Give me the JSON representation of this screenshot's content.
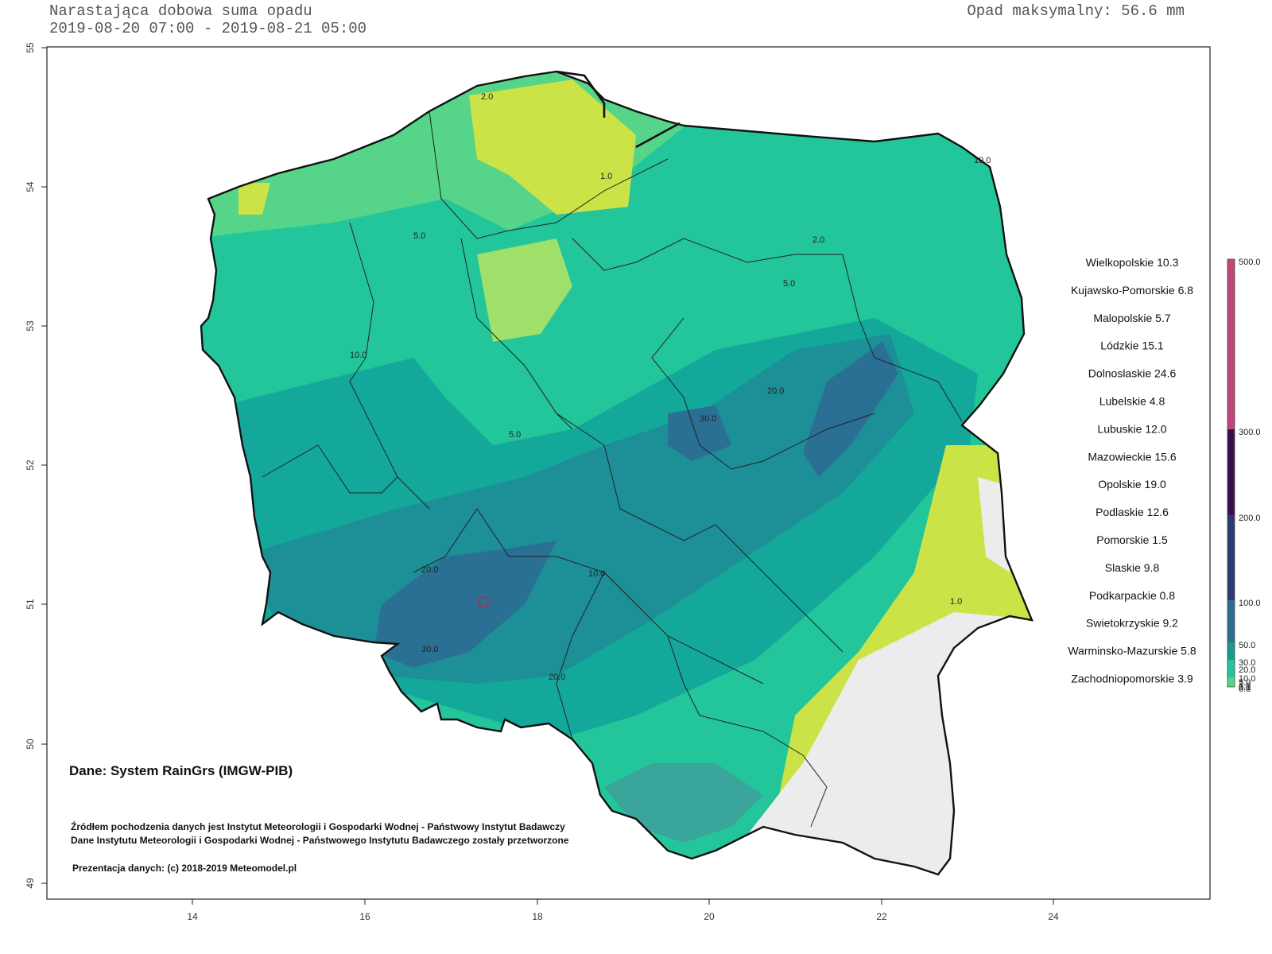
{
  "header": {
    "title": "Narastająca dobowa suma opadu",
    "period": "2019-08-20 07:00 - 2019-08-21 05:00",
    "max_label": "Opad maksymalny: 56.6 mm"
  },
  "axes": {
    "x_ticks": [
      "14",
      "16",
      "18",
      "20",
      "22",
      "24"
    ],
    "y_ticks": [
      "55",
      "54",
      "53",
      "52",
      "51",
      "50",
      "49"
    ]
  },
  "regions": [
    {
      "name": "Wielkopolskie",
      "value": "10.3"
    },
    {
      "name": "Kujawsko-Pomorskie",
      "value": "6.8"
    },
    {
      "name": "Malopolskie",
      "value": "5.7"
    },
    {
      "name": "Lódzkie",
      "value": "15.1"
    },
    {
      "name": "Dolnoslaskie",
      "value": "24.6"
    },
    {
      "name": "Lubelskie",
      "value": "4.8"
    },
    {
      "name": "Lubuskie",
      "value": "12.0"
    },
    {
      "name": "Mazowieckie",
      "value": "15.6"
    },
    {
      "name": "Opolskie",
      "value": "19.0"
    },
    {
      "name": "Podlaskie",
      "value": "12.6"
    },
    {
      "name": "Pomorskie",
      "value": "1.5"
    },
    {
      "name": "Slaskie",
      "value": "9.8"
    },
    {
      "name": "Podkarpackie",
      "value": "0.8"
    },
    {
      "name": "Swietokrzyskie",
      "value": "9.2"
    },
    {
      "name": "Warminsko-Mazurskie",
      "value": "5.8"
    },
    {
      "name": "Zachodniopomorskie",
      "value": "3.9"
    }
  ],
  "colorbar": {
    "labels": [
      "500.0",
      "300.0",
      "200.0",
      "100.0",
      "50.0",
      "30.0",
      "20.0",
      "10.0",
      "5.0",
      "1.0",
      "0.1",
      "0.0"
    ],
    "colors": [
      "#c2477a",
      "#3b0f4e",
      "#2b3a73",
      "#2d6e8e",
      "#1a9a8c",
      "#22c69a",
      "#55d48a"
    ]
  },
  "contour_labels": [
    "20.0",
    "30.0",
    "10.0",
    "5.0",
    "1.0",
    "2.0"
  ],
  "credits": {
    "source": "Dane: System RainGrs (IMGW-PIB)",
    "line1": "Źródłem pochodzenia danych jest Instytut Meteorologii i Gospodarki Wodnej - Państwowy Instytut Badawczy",
    "line2": "Dane Instytutu Meteorologii i Gospodarki Wodnej - Państwowego Instytutu Badawczego zostały przetworzone",
    "line3": "Prezentacja danych: (c) 2018-2019 Meteomodel.pl"
  }
}
